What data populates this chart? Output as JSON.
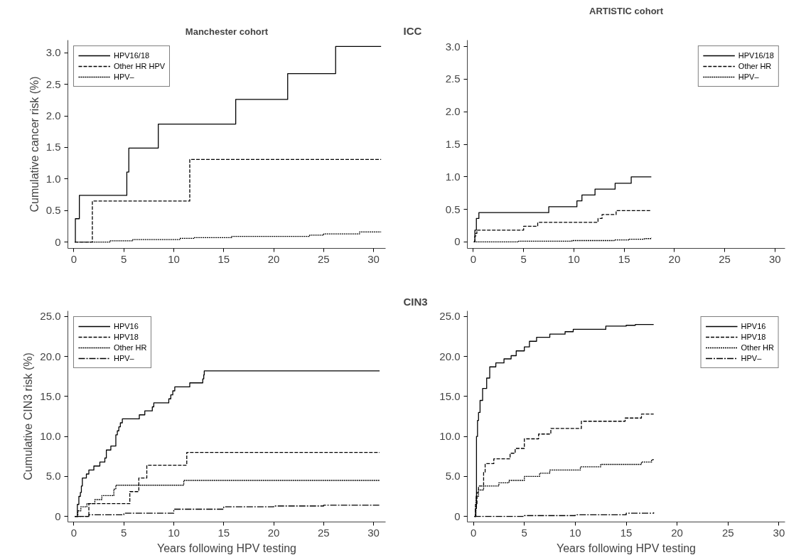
{
  "chart_data": [
    {
      "type": "step",
      "title": "Manchester cohort",
      "ylabel": "Cumulative cancer risk (%)",
      "xlim": [
        -0.6,
        31.2
      ],
      "ylim": [
        -0.1,
        3.2
      ],
      "xticks": [
        0,
        5,
        10,
        15,
        20,
        25,
        30
      ],
      "yticks": [
        0,
        0.5,
        {
          "value": 1,
          "label": "1.0"
        },
        1.5,
        {
          "value": 2,
          "label": "2.0"
        },
        2.5,
        {
          "value": 3,
          "label": "3.0"
        }
      ],
      "grid": false,
      "legend": "top left",
      "series": [
        {
          "name": "HPV16/18",
          "color": "#000000",
          "line_style": "solid",
          "x": [
            0.1,
            0.15,
            0.55,
            5.3,
            5.5,
            8.45,
            16.2,
            21.4,
            26.2,
            30.75
          ],
          "values": [
            0,
            0.37,
            0.74,
            1.11,
            1.49,
            1.87,
            2.26,
            2.67,
            3.1,
            3.1
          ]
        },
        {
          "name": "Other HR HPV",
          "color": "#000000",
          "line_style": "dashed",
          "x": [
            0.1,
            1.85,
            11.6,
            30.75
          ],
          "values": [
            0,
            0.65,
            1.31,
            1.31
          ]
        },
        {
          "name": "HPV–",
          "color": "#000000",
          "line_style": "dotted",
          "x": [
            0.1,
            3.6,
            5.9,
            10.6,
            12.0,
            15.8,
            23.6,
            25.0,
            28.6,
            30.75
          ],
          "values": [
            0,
            0.02,
            0.04,
            0.06,
            0.07,
            0.09,
            0.11,
            0.13,
            0.16,
            0.16
          ]
        }
      ]
    },
    {
      "type": "step",
      "title": "ARTISTIC cohort",
      "annotations": [
        "ICC"
      ],
      "xlim": [
        -0.6,
        31.0
      ],
      "ylim": [
        -0.1,
        3.1
      ],
      "xticks": [
        0,
        5,
        10,
        15,
        20,
        25,
        30
      ],
      "yticks": [
        0,
        0.5,
        {
          "value": 1,
          "label": "1.0"
        },
        1.5,
        {
          "value": 2,
          "label": "2.0"
        },
        2.5,
        {
          "value": 3,
          "label": "3.0"
        }
      ],
      "grid": false,
      "legend": "top right",
      "series": [
        {
          "name": "HPV16/18",
          "color": "#000000",
          "line_style": "solid",
          "x": [
            0.05,
            0.15,
            0.3,
            0.55,
            7.5,
            10.3,
            10.8,
            12.1,
            14.1,
            15.7,
            17.7
          ],
          "values": [
            0,
            0.18,
            0.36,
            0.45,
            0.54,
            0.63,
            0.72,
            0.81,
            0.9,
            1.0,
            1.0
          ]
        },
        {
          "name": "Other HR",
          "color": "#000000",
          "line_style": "dashed",
          "x": [
            0.05,
            0.15,
            0.25,
            0.35,
            5.0,
            6.4,
            12.4,
            12.8,
            14.2,
            17.7
          ],
          "values": [
            0,
            0.09,
            0.13,
            0.18,
            0.24,
            0.3,
            0.36,
            0.42,
            0.48,
            0.48
          ]
        },
        {
          "name": "HPV–",
          "color": "#000000",
          "line_style": "dotted",
          "x": [
            0.05,
            4.5,
            9.8,
            14.0,
            15.5,
            17.0,
            17.7
          ],
          "values": [
            0,
            0.01,
            0.02,
            0.03,
            0.04,
            0.05,
            0.06
          ]
        }
      ]
    },
    {
      "type": "step",
      "xlabel": "Years following HPV testing",
      "ylabel": "Cumulative CIN3 risk (%)",
      "xlim": [
        -0.6,
        31.2
      ],
      "ylim": [
        -0.7,
        25.7
      ],
      "xticks": [
        0,
        5,
        10,
        15,
        20,
        25,
        30
      ],
      "yticks": [
        0,
        {
          "value": 5,
          "label": "5.0"
        },
        {
          "value": 10,
          "label": "10.0"
        },
        {
          "value": 15,
          "label": "15.0"
        },
        {
          "value": 20,
          "label": "20.0"
        },
        {
          "value": 25,
          "label": "25.0"
        }
      ],
      "grid": false,
      "legend": "top left",
      "series": [
        {
          "name": "HPV16",
          "color": "#000000",
          "line_style": "solid",
          "x": [
            0.1,
            0.35,
            0.5,
            0.65,
            0.75,
            0.85,
            1.25,
            1.5,
            2.0,
            2.6,
            3.1,
            3.25,
            3.7,
            4.2,
            4.35,
            4.5,
            4.65,
            4.85,
            6.55,
            7.1,
            7.85,
            8.0,
            9.5,
            9.7,
            9.9,
            10.1,
            11.6,
            12.9,
            13.0,
            13.05,
            30.6
          ],
          "values": [
            0,
            1.5,
            2.5,
            3.0,
            3.8,
            4.8,
            5.3,
            5.8,
            6.3,
            6.8,
            7.3,
            8.3,
            8.8,
            10.2,
            10.7,
            11.2,
            11.7,
            12.2,
            12.7,
            13.2,
            13.7,
            14.2,
            14.7,
            15.2,
            15.7,
            16.2,
            16.7,
            17.2,
            17.7,
            18.2,
            18.2
          ]
        },
        {
          "name": "HPV18",
          "color": "#000000",
          "line_style": "dashed",
          "x": [
            0.1,
            1.5,
            5.6,
            6.5,
            7.3,
            11.3,
            30.6
          ],
          "values": [
            0,
            1.6,
            3.1,
            4.8,
            6.4,
            8.0,
            8.0
          ]
        },
        {
          "name": "Other HR",
          "color": "#000000",
          "line_style": "dotted",
          "x": [
            0.1,
            0.4,
            0.7,
            1.3,
            2.1,
            2.8,
            4.0,
            4.2,
            11.0,
            30.6
          ],
          "values": [
            0,
            0.7,
            1.2,
            1.6,
            2.1,
            2.6,
            3.4,
            3.9,
            4.5,
            4.5
          ]
        },
        {
          "name": "HPV–",
          "color": "#000000",
          "line_style": "dashdot",
          "x": [
            0.1,
            1.5,
            5,
            10,
            15,
            20,
            25,
            30.6
          ],
          "values": [
            0,
            0.2,
            0.4,
            0.9,
            1.2,
            1.3,
            1.4,
            1.5
          ]
        }
      ]
    },
    {
      "type": "step",
      "xlabel": "Years following HPV testing",
      "annotations": [
        "CIN3"
      ],
      "xlim": [
        -0.6,
        30.6
      ],
      "ylim": [
        -0.7,
        25.7
      ],
      "xticks": [
        0,
        5,
        10,
        15,
        20,
        25,
        30
      ],
      "yticks": [
        0,
        {
          "value": 5,
          "label": "5.0"
        },
        {
          "value": 10,
          "label": "10.0"
        },
        {
          "value": 15,
          "label": "15.0"
        },
        {
          "value": 20,
          "label": "20.0"
        },
        {
          "value": 25,
          "label": "25.0"
        }
      ],
      "grid": false,
      "legend": "top right",
      "series": [
        {
          "name": "HPV16",
          "color": "#000000",
          "line_style": "solid",
          "x": [
            0.1,
            0.2,
            0.3,
            0.4,
            0.5,
            0.65,
            0.9,
            1.3,
            1.6,
            2.2,
            3.0,
            3.7,
            4.2,
            5.0,
            5.5,
            6.2,
            7.5,
            9.0,
            9.8,
            13.0,
            15.0,
            15.9,
            17.7
          ],
          "values": [
            0,
            1,
            10,
            12,
            13,
            14.5,
            16,
            17.3,
            18.7,
            19.2,
            19.7,
            20.1,
            20.7,
            21.2,
            21.9,
            22.4,
            22.8,
            23.1,
            23.4,
            23.8,
            23.9,
            24.0,
            24.0
          ]
        },
        {
          "name": "HPV18",
          "color": "#000000",
          "line_style": "dashed",
          "x": [
            0.1,
            0.2,
            0.35,
            0.5,
            1.0,
            1.15,
            2.0,
            3.6,
            4.1,
            5.0,
            6.4,
            7.6,
            10.6,
            14.9,
            16.5,
            17.7
          ],
          "values": [
            0,
            1.5,
            3,
            3.8,
            5.5,
            6.6,
            7.2,
            7.9,
            8.5,
            9.7,
            10.3,
            11.0,
            11.9,
            12.3,
            12.8,
            12.8
          ]
        },
        {
          "name": "Other HR",
          "color": "#000000",
          "line_style": "dotted",
          "x": [
            0.1,
            0.25,
            0.5,
            1.0,
            2.5,
            3.5,
            5.0,
            6.5,
            7.5,
            10.5,
            12.5,
            16.5,
            17.5,
            17.7
          ],
          "values": [
            0,
            2.5,
            3.3,
            3.8,
            4.2,
            4.5,
            5.0,
            5.4,
            5.8,
            6.2,
            6.5,
            6.8,
            7.1,
            7.1
          ]
        },
        {
          "name": "HPV–",
          "color": "#000000",
          "line_style": "dashdot",
          "x": [
            0.1,
            5,
            10,
            15,
            17.7
          ],
          "values": [
            0,
            0.1,
            0.2,
            0.4,
            0.5
          ]
        }
      ]
    }
  ]
}
